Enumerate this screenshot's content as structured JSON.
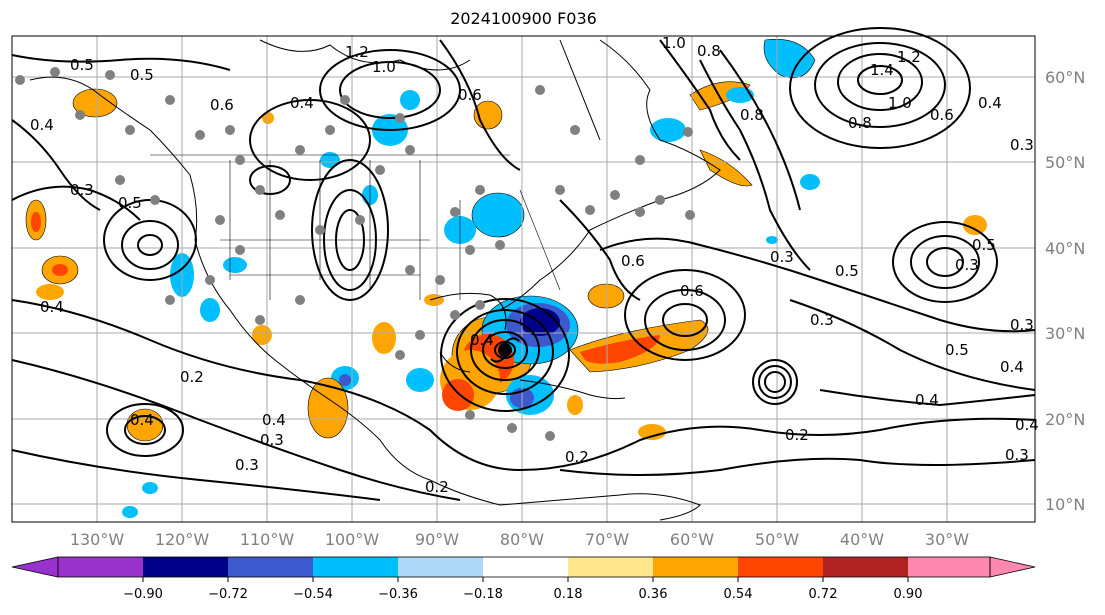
{
  "title": "2024100900 F036",
  "lon_labels": [
    "130°W",
    "120°W",
    "110°W",
    "100°W",
    "90°W",
    "80°W",
    "70°W",
    "60°W",
    "50°W",
    "40°W",
    "30°W"
  ],
  "lat_labels": [
    "60°N",
    "50°N",
    "40°N",
    "30°N",
    "20°N",
    "10°N"
  ],
  "colorbar": {
    "ticks": [
      "−0.90",
      "−0.72",
      "−0.54",
      "−0.36",
      "−0.18",
      "0.18",
      "0.36",
      "0.54",
      "0.72",
      "0.90"
    ],
    "colors": [
      "#9932cc",
      "#00008b",
      "#3c5acd",
      "#00bfff",
      "#add8f8",
      "#ffffff",
      "#ffe68c",
      "#ffa500",
      "#ff4500",
      "#b22222",
      "#ff88b0"
    ]
  },
  "contour_labels": [
    "1.2",
    "1.0",
    "0.5",
    "0.5",
    "0.4",
    "0.4",
    "0.6",
    "0.3",
    "0.5",
    "0.6",
    "0.4",
    "0.3",
    "0.2",
    "0.4",
    "0.4",
    "0.3",
    "0.2",
    "0.2",
    "0.6",
    "0.3",
    "0.5",
    "0.3",
    "0.6",
    "0.4",
    "1.0",
    "0.8",
    "0.8",
    "1.4",
    "1.2",
    "1.0",
    "0.8",
    "0.6",
    "0.4",
    "0.3",
    "0.3",
    "0.5",
    "0.4",
    "0.4",
    "0.2",
    "0.3",
    "0.3",
    "0.4",
    "0.5"
  ]
}
